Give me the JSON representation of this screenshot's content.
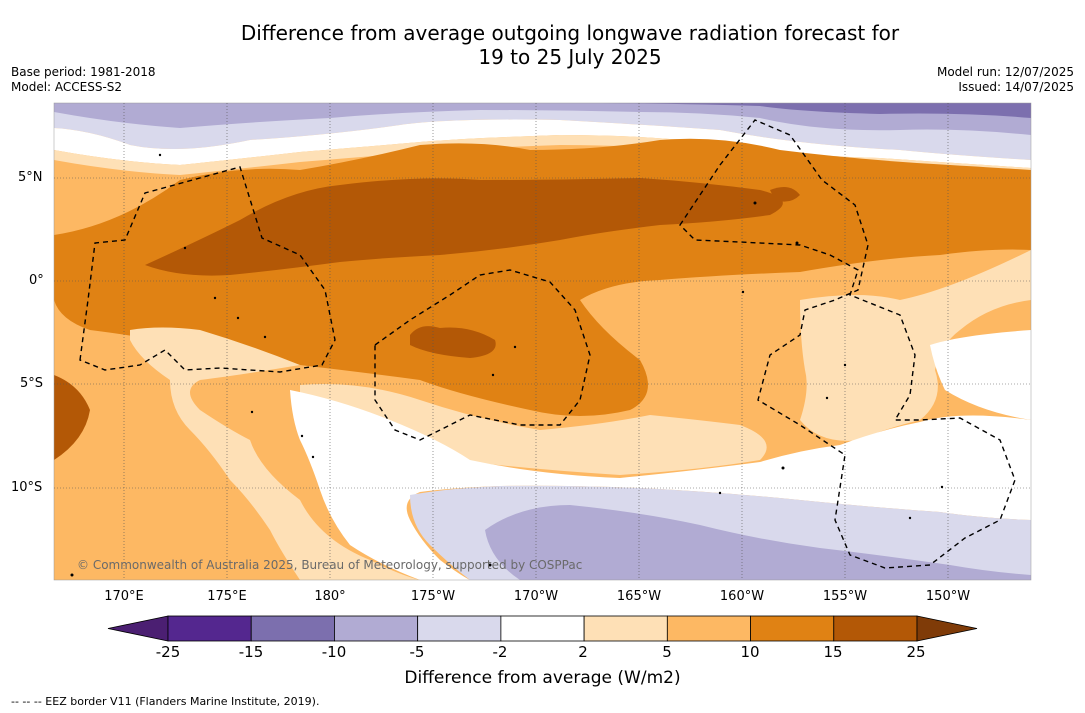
{
  "title_line1": "Difference from average outgoing longwave radiation forecast for",
  "title_line2": "19 to 25 July 2025",
  "base_period": "Base period: 1981-2018",
  "model": "Model: ACCESS-S2",
  "model_run": "Model run: 12/07/2025",
  "issued": "Issued: 14/07/2025",
  "lon_labels": [
    "170°E",
    "175°E",
    "180°",
    "175°W",
    "170°W",
    "165°W",
    "160°W",
    "155°W",
    "150°W"
  ],
  "lat_labels": [
    "5°N",
    "0°",
    "5°S",
    "10°S"
  ],
  "copyright": "© Commonwealth of Australia 2025, Bureau of Meteorology, supported by COSPPac",
  "colorbar": {
    "ticks": [
      "-25",
      "-15",
      "-10",
      "-5",
      "-2",
      "2",
      "5",
      "10",
      "15",
      "25"
    ],
    "title": "Difference from average (W/m2)",
    "colors": [
      "#4b1f72",
      "#54278f",
      "#7c6fae",
      "#b1abd3",
      "#d9d9ec",
      "#ffffff",
      "#fee0b6",
      "#fdb863",
      "#e08214",
      "#b35806",
      "#7f3b08"
    ]
  },
  "footer": "--  --  -- EEZ border V11 (Flanders Marine Institute, 2019)."
}
